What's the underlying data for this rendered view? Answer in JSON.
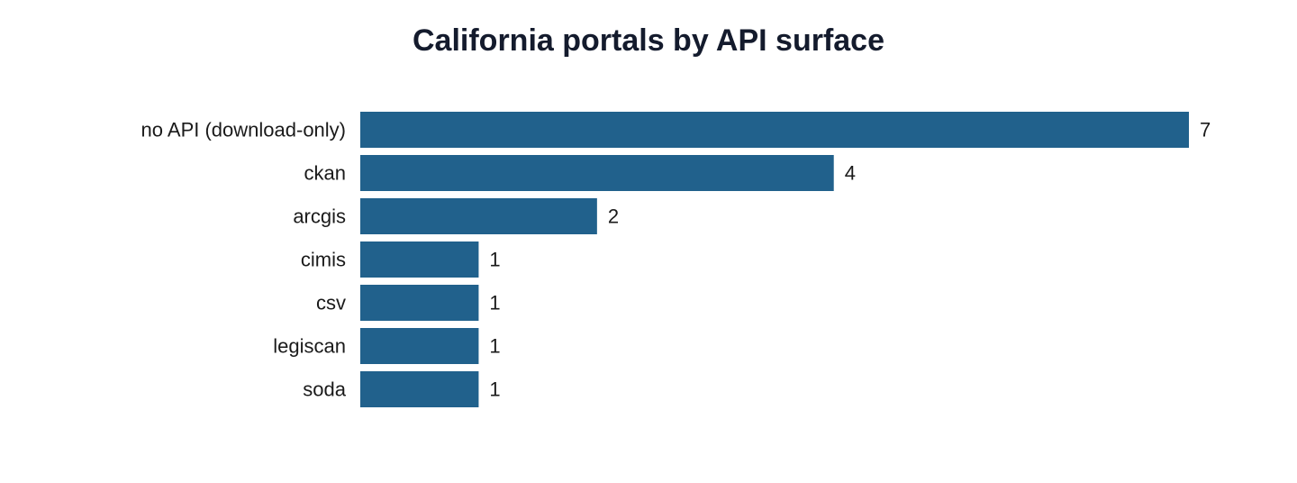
{
  "chart_data": {
    "type": "bar",
    "orientation": "horizontal",
    "title": "California portals by API surface",
    "xlabel": "",
    "ylabel": "",
    "categories": [
      "no API (download-only)",
      "ckan",
      "arcgis",
      "cimis",
      "csv",
      "legiscan",
      "soda"
    ],
    "values": [
      7,
      4,
      2,
      1,
      1,
      1,
      1
    ],
    "xlim": [
      0,
      7
    ],
    "grid": false,
    "legend": "none",
    "bar_color": "#21618c"
  }
}
